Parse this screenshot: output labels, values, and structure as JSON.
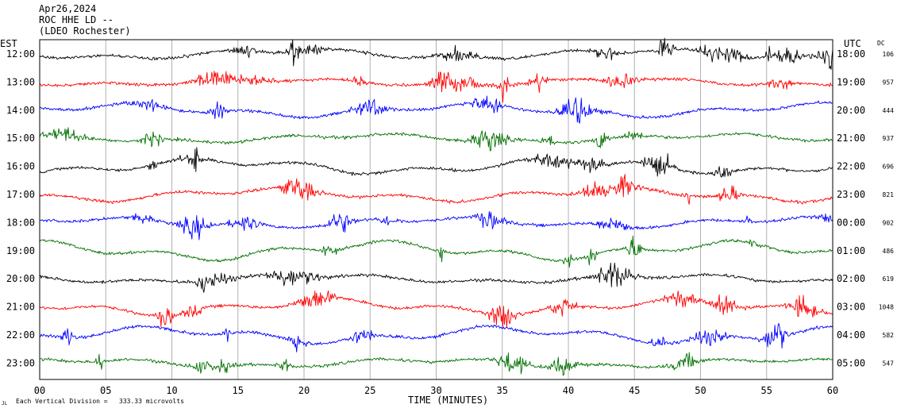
{
  "header": {
    "date": "Apr26,2024",
    "station": "ROC HHE LD --",
    "location": "(LDEO Rochester)"
  },
  "footer": {
    "note": "Each Vertical Division = ",
    "scale": "333.33 microvolts"
  },
  "chart_data": {
    "type": "line",
    "title": "Apr26,2024",
    "subtitle": "ROC HHE LD --",
    "xlabel": "TIME (MINUTES)",
    "left_axis_title": "EST",
    "right_axis_title": "UTC",
    "dc_column_title": "DC",
    "xlim": [
      0,
      60
    ],
    "x_ticks": [
      "00",
      "05",
      "10",
      "15",
      "20",
      "25",
      "30",
      "35",
      "40",
      "45",
      "50",
      "55",
      "60"
    ],
    "grid": true,
    "trace_colors": [
      "#000000",
      "#ff0000",
      "#0000ff",
      "#007000"
    ],
    "rows": [
      {
        "est": "12:00",
        "utc": "18:00",
        "dc": "106",
        "color": "#000000"
      },
      {
        "est": "13:00",
        "utc": "19:00",
        "dc": "957",
        "color": "#ff0000"
      },
      {
        "est": "14:00",
        "utc": "20:00",
        "dc": "444",
        "color": "#0000ff"
      },
      {
        "est": "15:00",
        "utc": "21:00",
        "dc": "937",
        "color": "#007000"
      },
      {
        "est": "16:00",
        "utc": "22:00",
        "dc": "696",
        "color": "#000000"
      },
      {
        "est": "17:00",
        "utc": "23:00",
        "dc": "821",
        "color": "#ff0000"
      },
      {
        "est": "18:00",
        "utc": "00:00",
        "dc": "902",
        "color": "#0000ff"
      },
      {
        "est": "19:00",
        "utc": "01:00",
        "dc": "486",
        "color": "#007000"
      },
      {
        "est": "20:00",
        "utc": "02:00",
        "dc": "619",
        "color": "#000000"
      },
      {
        "est": "21:00",
        "utc": "03:00",
        "dc": "1048",
        "color": "#ff0000"
      },
      {
        "est": "22:00",
        "utc": "04:00",
        "dc": "582",
        "color": "#0000ff"
      },
      {
        "est": "23:00",
        "utc": "05:00",
        "dc": "547",
        "color": "#007000"
      }
    ]
  }
}
